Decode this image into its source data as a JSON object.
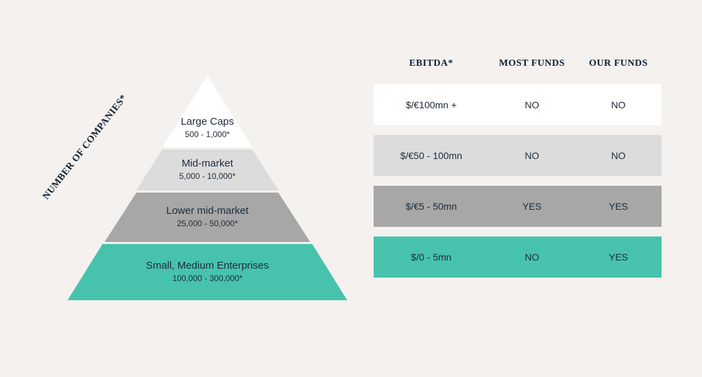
{
  "colors": {
    "page_bg": "#f4f1ee",
    "text_dark": "#0f1f33",
    "text_body": "#1b2a3a",
    "tier1_bg": "#ffffff",
    "tier2_bg": "#dcdcdc",
    "tier3_bg": "#a7a7a7",
    "tier4_bg": "#47c3ad",
    "row1_bg": "#ffffff",
    "row2_bg": "#dcdcdc",
    "row3_bg": "#a7a7a7",
    "row4_bg": "#47c3ad"
  },
  "pyramid": {
    "axis_label": "NUMBER OF COMPANIES*",
    "tiers": [
      {
        "title": "Large Caps",
        "sub": "500 - 1,000*"
      },
      {
        "title": "Mid-market",
        "sub": "5,000 - 10,000*"
      },
      {
        "title": "Lower mid-market",
        "sub": "25,000 - 50,000*"
      },
      {
        "title": "Small, Medium Enterprises",
        "sub": "100,000 - 300,000*"
      }
    ]
  },
  "table": {
    "headers": {
      "a": "EBITDA*",
      "b": "MOST FUNDS",
      "c": "OUR FUNDS"
    },
    "rows": [
      {
        "a": "$/€100mn +",
        "b": "NO",
        "c": "NO"
      },
      {
        "a": "$/€50 - 100mn",
        "b": "NO",
        "c": "NO"
      },
      {
        "a": "$/€5 - 50mn",
        "b": "YES",
        "c": "YES"
      },
      {
        "a": "$/0 - 5mn",
        "b": "NO",
        "c": "YES"
      }
    ]
  }
}
